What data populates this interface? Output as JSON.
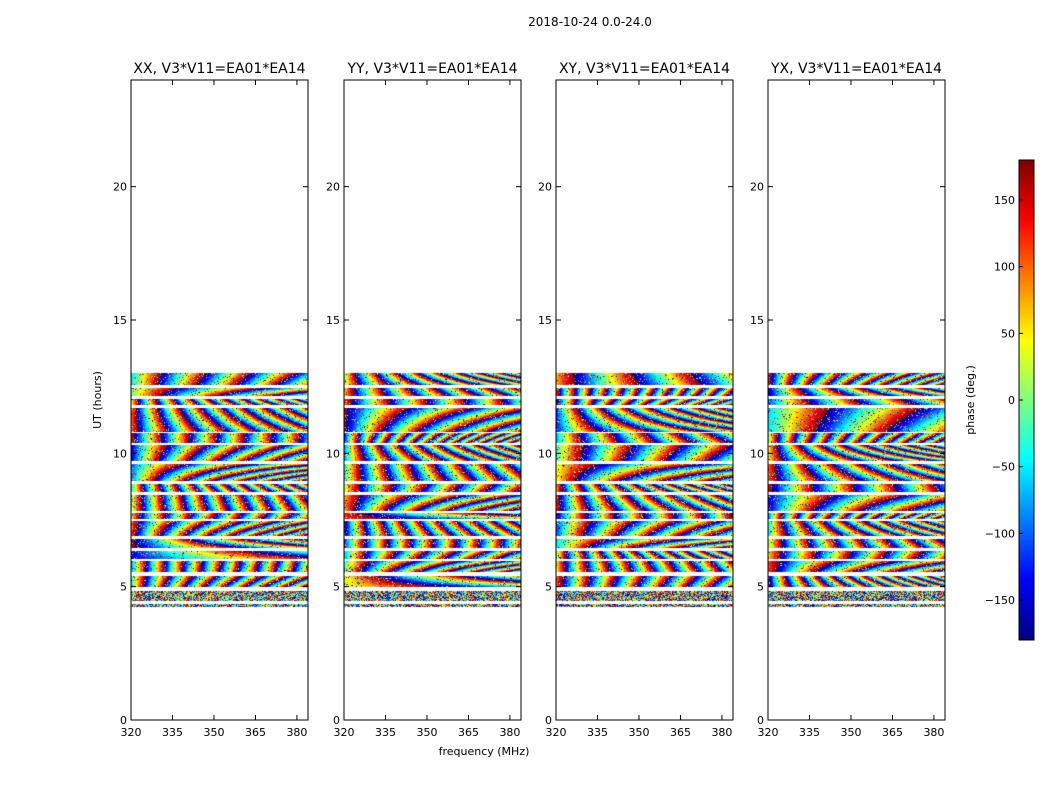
{
  "chart_data": {
    "type": "heatmap",
    "suptitle": "2018-10-24 0.0-24.0",
    "xlabel": "frequency (MHz)",
    "ylabel": "UT (hours)",
    "xlim": [
      320,
      384
    ],
    "ylim": [
      0,
      24
    ],
    "xticks": [
      320,
      335,
      350,
      365,
      380
    ],
    "yticks": [
      0,
      5,
      10,
      15,
      20
    ],
    "panels": [
      {
        "title": "XX, V3*V11=EA01*EA14"
      },
      {
        "title": "YY, V3*V11=EA01*EA14"
      },
      {
        "title": "XY, V3*V11=EA01*EA14"
      },
      {
        "title": "YX, V3*V11=EA01*EA14"
      }
    ],
    "data_ut_range": [
      4.2,
      13.0
    ],
    "colorbar": {
      "label": "phase (deg.)",
      "range": [
        -180,
        180
      ],
      "ticks": [
        150,
        100,
        50,
        0,
        -50,
        -100,
        -150
      ],
      "colormap": "jet"
    },
    "scan_bands_ut": [
      {
        "t0": 12.55,
        "t1": 13.0
      },
      {
        "t0": 12.15,
        "t1": 12.45
      },
      {
        "t0": 11.8,
        "t1": 12.05
      },
      {
        "t0": 10.8,
        "t1": 11.7
      },
      {
        "t0": 10.4,
        "t1": 10.75
      },
      {
        "t0": 9.7,
        "t1": 10.3
      },
      {
        "t0": 8.95,
        "t1": 9.6
      },
      {
        "t0": 8.55,
        "t1": 8.85
      },
      {
        "t0": 7.85,
        "t1": 8.45
      },
      {
        "t0": 7.55,
        "t1": 7.75
      },
      {
        "t0": 6.9,
        "t1": 7.45
      },
      {
        "t0": 6.45,
        "t1": 6.8
      },
      {
        "t0": 6.05,
        "t1": 6.35
      },
      {
        "t0": 5.55,
        "t1": 5.95
      },
      {
        "t0": 5.0,
        "t1": 5.4
      },
      {
        "t0": 4.45,
        "t1": 4.85
      },
      {
        "t0": 4.25,
        "t1": 4.35
      }
    ]
  }
}
